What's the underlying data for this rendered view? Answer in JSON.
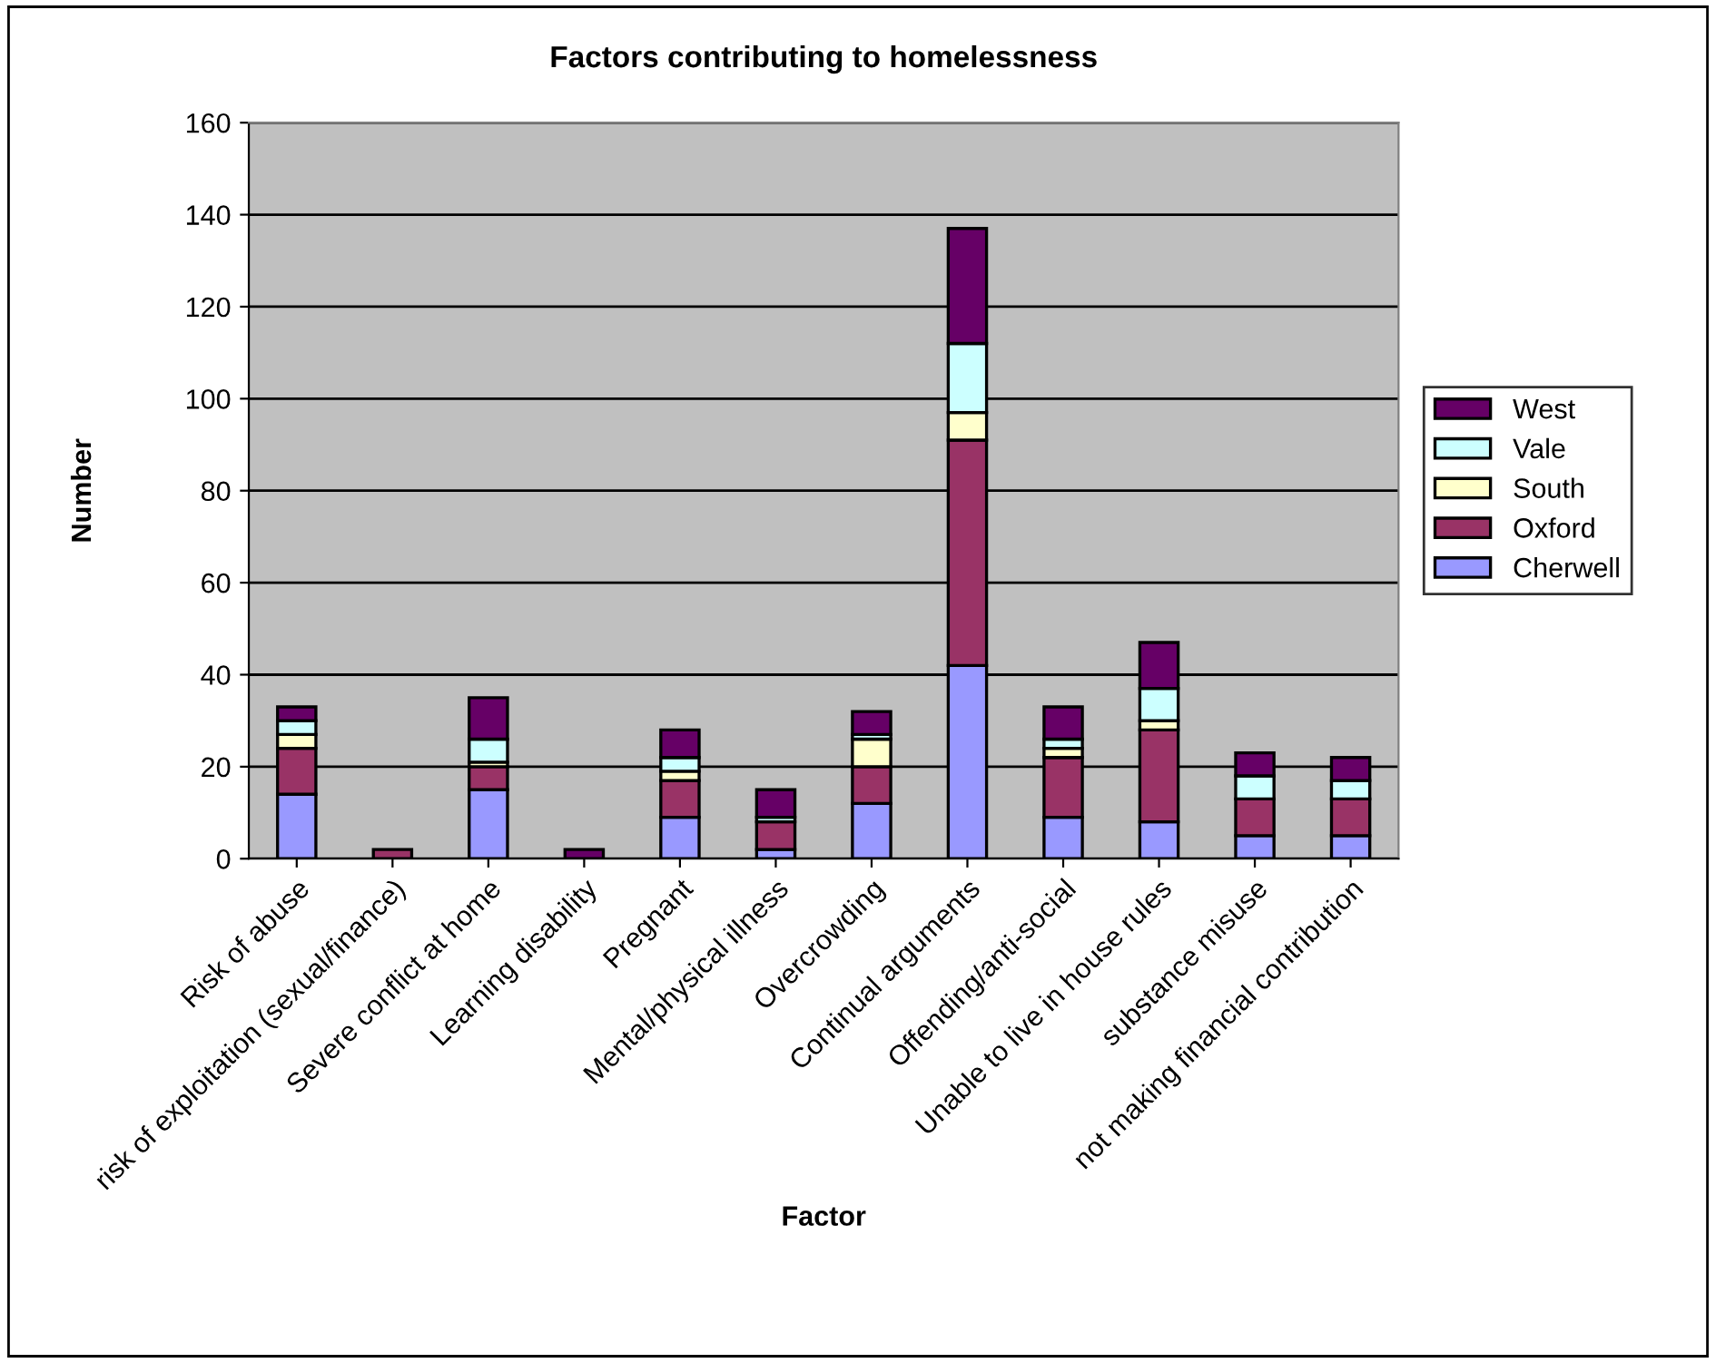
{
  "chart_data": {
    "type": "bar",
    "title": "Factors contributing to homelessness",
    "xlabel": "Factor",
    "ylabel": "Number",
    "categories": [
      "Risk of abuse",
      "risk of exploitation (sexual/finance)",
      "Severe conflict at home",
      "Learning disability",
      "Pregnant",
      "Mental/physical illness",
      "Overcrowding",
      "Continual arguments",
      "Offending/anti-social",
      "Unable to live in house rules",
      "substance misuse",
      "not making financial contribution"
    ],
    "stacked": true,
    "series": [
      {
        "name": "Cherwell",
        "color": "#9999ff",
        "values": [
          14,
          0,
          15,
          0,
          9,
          2,
          12,
          42,
          9,
          8,
          5,
          5
        ]
      },
      {
        "name": "Oxford",
        "color": "#993366",
        "values": [
          10,
          2,
          5,
          0,
          8,
          6,
          8,
          49,
          13,
          20,
          8,
          8
        ]
      },
      {
        "name": "South",
        "color": "#ffffcc",
        "values": [
          3,
          0,
          1,
          0,
          2,
          0,
          6,
          6,
          2,
          2,
          0,
          0
        ]
      },
      {
        "name": "Vale",
        "color": "#ccffff",
        "values": [
          3,
          0,
          5,
          0,
          3,
          1,
          1,
          15,
          2,
          7,
          5,
          4
        ]
      },
      {
        "name": "West",
        "color": "#660066",
        "values": [
          3,
          0,
          9,
          2,
          6,
          6,
          5,
          25,
          7,
          10,
          5,
          5
        ]
      }
    ],
    "ylim": [
      0,
      160
    ],
    "yticks": [
      0,
      20,
      40,
      60,
      80,
      100,
      120,
      140,
      160
    ],
    "grid": "y",
    "legend": "right"
  }
}
